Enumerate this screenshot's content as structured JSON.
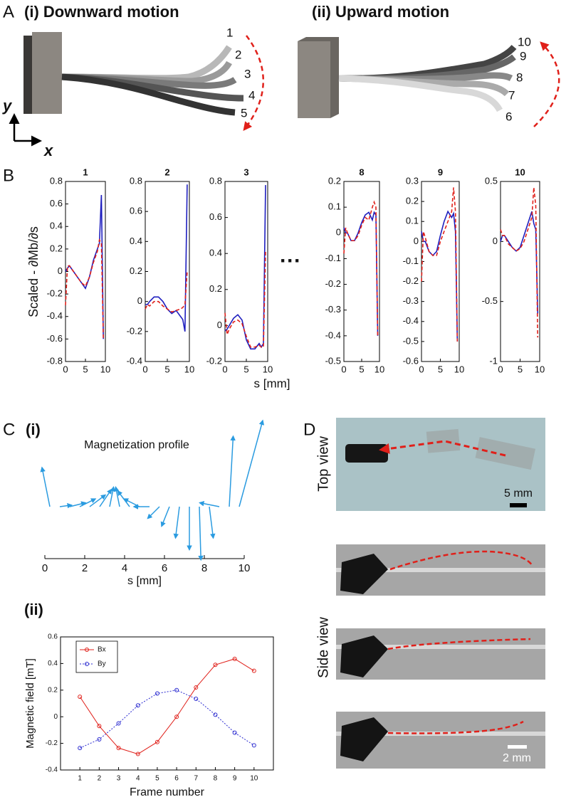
{
  "panel_labels": {
    "a": "A",
    "b": "B",
    "c": "C",
    "c_i": "(i)",
    "c_ii": "(ii)",
    "d": "D"
  },
  "panel_a": {
    "title_left": "(i) Downward motion",
    "title_right": "(ii) Upward motion",
    "axis_y": "y",
    "axis_x": "x",
    "frames_left": [
      "1",
      "2",
      "3",
      "4",
      "5"
    ],
    "frames_right": [
      "10",
      "9",
      "8",
      "7",
      "6"
    ]
  },
  "panel_b": {
    "y_label": "Scaled - ∂Mb/∂s",
    "x_label": "s [mm]",
    "ellipsis": "···"
  },
  "panel_d": {
    "top_view": "Top view",
    "side_view": "Side view",
    "scale_top": "5 mm",
    "scale_side": "2 mm"
  },
  "chart_data": [
    {
      "type": "line",
      "title": "1",
      "x": [
        0,
        0.5,
        1,
        2,
        3,
        4,
        5,
        6,
        7,
        8,
        8.5,
        9,
        9.5
      ],
      "series": [
        {
          "color": "#1f1fbf",
          "dash": false,
          "values": [
            0,
            0.03,
            0.05,
            0,
            -0.05,
            -0.1,
            -0.15,
            -0.05,
            0.1,
            0.2,
            0.25,
            0.68,
            -0.6
          ]
        },
        {
          "color": "#e0201a",
          "dash": true,
          "values": [
            -0.3,
            0.05,
            0.05,
            0,
            -0.05,
            -0.1,
            -0.13,
            -0.05,
            0.08,
            0.18,
            0.28,
            0.25,
            -0.6
          ]
        }
      ],
      "xlim": [
        0,
        10
      ],
      "xticks": [
        0,
        5,
        10
      ],
      "ylim": [
        -0.8,
        0.8
      ],
      "yticks": [
        -0.8,
        -0.6,
        -0.4,
        -0.2,
        0,
        0.2,
        0.4,
        0.6,
        0.8
      ]
    },
    {
      "type": "line",
      "title": "2",
      "x": [
        0,
        0.5,
        1,
        2,
        3,
        4,
        5,
        6,
        7,
        8,
        8.5,
        9,
        9.5
      ],
      "series": [
        {
          "color": "#1f1fbf",
          "dash": false,
          "values": [
            -0.02,
            -0.02,
            0,
            0.03,
            0.03,
            0,
            -0.05,
            -0.08,
            -0.06,
            -0.1,
            -0.12,
            -0.2,
            0.78
          ]
        },
        {
          "color": "#e0201a",
          "dash": true,
          "values": [
            -0.05,
            -0.02,
            -0.03,
            0,
            0,
            -0.03,
            -0.05,
            -0.07,
            -0.06,
            -0.05,
            -0.04,
            -0.02,
            0.2
          ]
        }
      ],
      "xlim": [
        0,
        10
      ],
      "xticks": [
        0,
        5,
        10
      ],
      "ylim": [
        -0.4,
        0.8
      ],
      "yticks": [
        -0.4,
        -0.2,
        0,
        0.2,
        0.4,
        0.6,
        0.8
      ]
    },
    {
      "type": "line",
      "title": "3",
      "x": [
        0,
        0.5,
        1,
        2,
        3,
        4,
        5,
        6,
        7,
        8,
        8.5,
        9,
        9.5
      ],
      "series": [
        {
          "color": "#1f1fbf",
          "dash": false,
          "values": [
            -0.03,
            -0.02,
            0,
            0.04,
            0.06,
            0.03,
            -0.08,
            -0.13,
            -0.13,
            -0.1,
            -0.12,
            -0.1,
            0.78
          ]
        },
        {
          "color": "#e0201a",
          "dash": true,
          "values": [
            0.07,
            -0.05,
            -0.02,
            0.02,
            0.03,
            0.01,
            -0.06,
            -0.12,
            -0.12,
            -0.11,
            -0.12,
            -0.12,
            0.42
          ]
        }
      ],
      "xlim": [
        0,
        10
      ],
      "xticks": [
        0,
        5,
        10
      ],
      "ylim": [
        -0.2,
        0.8
      ],
      "yticks": [
        -0.2,
        0,
        0.2,
        0.4,
        0.6,
        0.8
      ]
    },
    {
      "type": "line",
      "title": "8",
      "x": [
        0,
        0.5,
        1,
        2,
        3,
        4,
        5,
        6,
        7,
        8,
        8.5,
        9,
        9.5
      ],
      "series": [
        {
          "color": "#1f1fbf",
          "dash": false,
          "values": [
            0.02,
            0,
            0,
            -0.03,
            -0.03,
            0,
            0.04,
            0.07,
            0.08,
            0.05,
            0.08,
            0.07,
            -0.4
          ]
        },
        {
          "color": "#e0201a",
          "dash": true,
          "values": [
            -0.08,
            0.02,
            0,
            -0.03,
            -0.03,
            -0.01,
            0.03,
            0.06,
            0.05,
            0.1,
            0.12,
            0.1,
            -0.4
          ]
        }
      ],
      "xlim": [
        0,
        10
      ],
      "xticks": [
        0,
        5,
        10
      ],
      "ylim": [
        -0.5,
        0.2
      ],
      "yticks": [
        -0.5,
        -0.4,
        -0.3,
        -0.2,
        -0.1,
        0,
        0.1,
        0.2
      ]
    },
    {
      "type": "line",
      "title": "9",
      "x": [
        0,
        0.5,
        1,
        2,
        3,
        4,
        5,
        6,
        7,
        8,
        8.5,
        9,
        9.5
      ],
      "series": [
        {
          "color": "#1f1fbf",
          "dash": false,
          "values": [
            0.05,
            0,
            0,
            -0.05,
            -0.07,
            -0.05,
            0.03,
            0.1,
            0.15,
            0.12,
            0.14,
            0.05,
            -0.5
          ]
        },
        {
          "color": "#e0201a",
          "dash": true,
          "values": [
            -0.2,
            0.05,
            0.02,
            -0.05,
            -0.07,
            -0.07,
            0,
            0.05,
            0.1,
            0.15,
            0.27,
            0.15,
            -0.5
          ]
        }
      ],
      "xlim": [
        0,
        10
      ],
      "xticks": [
        0,
        5,
        10
      ],
      "ylim": [
        -0.6,
        0.3
      ],
      "yticks": [
        -0.6,
        -0.5,
        -0.4,
        -0.3,
        -0.2,
        -0.1,
        0,
        0.1,
        0.2,
        0.3
      ]
    },
    {
      "type": "line",
      "title": "10",
      "x": [
        0,
        0.5,
        1,
        2,
        3,
        4,
        5,
        6,
        7,
        8,
        8.5,
        9,
        9.5
      ],
      "series": [
        {
          "color": "#1f1fbf",
          "dash": false,
          "values": [
            0,
            0.05,
            0.05,
            0,
            -0.05,
            -0.08,
            -0.05,
            0.05,
            0.15,
            0.25,
            0.15,
            0.1,
            -0.6
          ]
        },
        {
          "color": "#e0201a",
          "dash": true,
          "values": [
            0.1,
            0.05,
            0.05,
            -0.02,
            -0.05,
            -0.08,
            -0.06,
            0,
            0.1,
            0.2,
            0.45,
            0.3,
            -0.8
          ]
        }
      ],
      "xlim": [
        0,
        10
      ],
      "xticks": [
        0,
        5,
        10
      ],
      "ylim": [
        -1,
        0.5
      ],
      "yticks": [
        -1,
        -0.5,
        0,
        0.5
      ]
    },
    {
      "type": "quiver",
      "annotation": "Magnetization profile",
      "x_label": "s [mm]",
      "color": "#2a9be0",
      "x": [
        0.25,
        0.75,
        1.25,
        1.75,
        2.25,
        2.75,
        3.25,
        3.75,
        4.25,
        4.75,
        5.25,
        5.75,
        6.25,
        6.75,
        7.25,
        7.75,
        8.25,
        8.75,
        9.25,
        9.75
      ],
      "u": [
        -0.1,
        0.15,
        0.2,
        0.2,
        0.2,
        0.15,
        0.05,
        -0.05,
        -0.15,
        -0.2,
        -0.2,
        -0.15,
        -0.1,
        -0.05,
        0,
        0.02,
        0.05,
        -0.25,
        0.05,
        0.3
      ],
      "v": [
        0.5,
        0.02,
        0.05,
        0.1,
        0.15,
        0.22,
        0.25,
        0.25,
        0.2,
        0.1,
        0,
        -0.15,
        -0.25,
        -0.4,
        -0.55,
        -0.68,
        -0.4,
        0.05,
        0.9,
        1.1
      ],
      "xlim": [
        0,
        10
      ],
      "xticks": [
        0,
        2,
        4,
        6,
        8,
        10
      ]
    },
    {
      "type": "line",
      "x_label": "Frame number",
      "y_label": "Magnetic field [mT]",
      "markers": true,
      "legend": "top-left",
      "x": [
        1,
        2,
        3,
        4,
        5,
        6,
        7,
        8,
        9,
        10
      ],
      "series": [
        {
          "name": "Bx",
          "color": "#e0201a",
          "dash": false,
          "values": [
            0.15,
            -0.07,
            -0.235,
            -0.28,
            -0.19,
            0,
            0.22,
            0.39,
            0.435,
            0.345
          ]
        },
        {
          "name": "By",
          "color": "#2a2ad0",
          "dash": true,
          "values": [
            -0.235,
            -0.17,
            -0.05,
            0.085,
            0.175,
            0.2,
            0.135,
            0.015,
            -0.12,
            -0.215
          ]
        }
      ],
      "xlim": [
        0,
        11
      ],
      "xticks": [
        1,
        2,
        3,
        4,
        5,
        6,
        7,
        8,
        9,
        10
      ],
      "ylim": [
        -0.4,
        0.6
      ],
      "yticks": [
        -0.4,
        -0.2,
        0,
        0.2,
        0.4,
        0.6
      ]
    }
  ]
}
